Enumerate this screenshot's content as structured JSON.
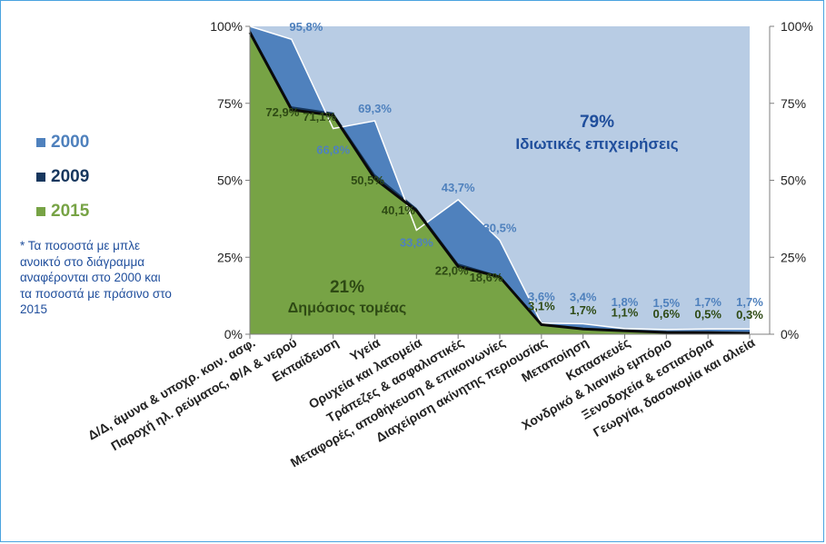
{
  "chart_data": {
    "type": "area",
    "categories": [
      "Δ/Δ, άμυνα & υποχρ. κοιν. ασφ.",
      "Παροχή ηλ. ρεύματος, Φ/Α & νερού",
      "Εκπαίδευση",
      "Υγεία",
      "Ορυχεία και λατομεία",
      "Τράπεζες & ασφαλιστικές",
      "Μεταφορές, αποθήκευση & επικοινωνίες",
      "Διαχείριση ακίνητης περιουσίας",
      "Μεταποίηση",
      "Κατασκευές",
      "Χονδρικό & λιανικό εμπόριο",
      "Ξενοδοχεία & εστιατόρια",
      "Γεωργία, δασοκομία και αλιεία"
    ],
    "series": [
      {
        "name": "2000",
        "color": "#4f81bd",
        "values": [
          100,
          95.8,
          66.8,
          69.3,
          33.8,
          43.7,
          30.5,
          3.6,
          3.4,
          1.8,
          1.5,
          1.7,
          1.7
        ],
        "labels": [
          "",
          "95,8%",
          "66,8%",
          "69,3%",
          "33,8%",
          "43,7%",
          "30,5%",
          "3,6%",
          "3,4%",
          "1,8%",
          "1,5%",
          "1,7%",
          "1,7%"
        ]
      },
      {
        "name": "2009",
        "color": "#17375e",
        "values": [
          99,
          74,
          72,
          52,
          41,
          23,
          19,
          3.2,
          2.0,
          1.2,
          0.8,
          0.6,
          0.4
        ],
        "labels": []
      },
      {
        "name": "2015",
        "color": "#77a345",
        "values": [
          98,
          72.9,
          71.1,
          50.5,
          40.1,
          22.0,
          18.6,
          3.1,
          1.7,
          1.1,
          0.6,
          0.5,
          0.3
        ],
        "labels": [
          "",
          "72,9%",
          "71,1%",
          "50,5%",
          "40,1%",
          "22,0%",
          "18,6%",
          "3,1%",
          "1,7%",
          "1,1%",
          "0,6%",
          "0,5%",
          "0,3%"
        ]
      }
    ],
    "background_series": {
      "color": "#b8cce4"
    },
    "ylim": [
      0,
      100
    ],
    "yticks": [
      "0%",
      "25%",
      "50%",
      "75%",
      "100%"
    ],
    "grid": false,
    "legend_position": "left",
    "annotations": {
      "private": {
        "pct": "79%",
        "text": "Ιδιωτικές επιχειρήσεις"
      },
      "public": {
        "pct": "21%",
        "text": "Δημόσιος τομέας"
      }
    }
  },
  "legend": [
    {
      "label": "2000",
      "color": "#4f81bd"
    },
    {
      "label": "2009",
      "color": "#17375e"
    },
    {
      "label": "2015",
      "color": "#77a345"
    }
  ],
  "note": "* Τα ποσοστά με μπλε ανοικτό στο διάγραμμα αναφέρονται στο 2000 και τα ποσοστά με πράσινο στο 2015"
}
